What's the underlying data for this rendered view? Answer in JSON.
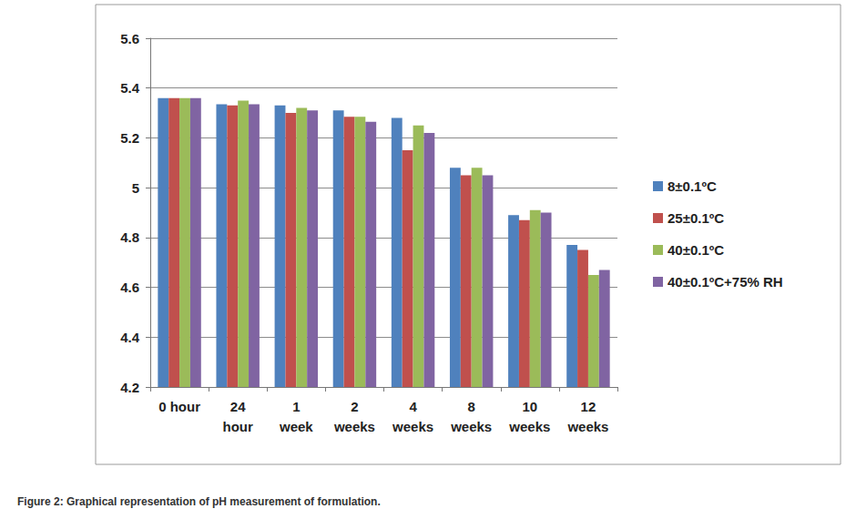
{
  "chart_data": {
    "type": "bar",
    "title": "Figure 2: Graphical representation of pH measurement of formulation.",
    "categories": [
      "0 hour",
      "24 hour",
      "1 week",
      "2 weeks",
      "4 weeks",
      "8 weeks",
      "10 weeks",
      "12 weeks"
    ],
    "series": [
      {
        "name": "8±0.1ºC",
        "color": "#4f81bd",
        "values": [
          5.36,
          5.335,
          5.33,
          5.31,
          5.28,
          5.08,
          4.89,
          4.77
        ]
      },
      {
        "name": "25±0.1ºC",
        "color": "#c0504d",
        "values": [
          5.36,
          5.33,
          5.3,
          5.285,
          5.15,
          5.05,
          4.87,
          4.75
        ]
      },
      {
        "name": "40±0.1ºC",
        "color": "#9bbb59",
        "values": [
          5.36,
          5.35,
          5.32,
          5.285,
          5.25,
          5.08,
          4.91,
          4.65
        ]
      },
      {
        "name": "40±0.1ºC+75% RH",
        "color": "#8064a2",
        "values": [
          5.36,
          5.335,
          5.31,
          5.265,
          5.22,
          5.05,
          4.9,
          4.67
        ]
      }
    ],
    "ylim": [
      4.2,
      5.6
    ],
    "yticks": [
      4.2,
      4.4,
      4.6,
      4.8,
      5,
      5.2,
      5.4,
      5.6
    ],
    "grid": true,
    "legend": "right"
  }
}
